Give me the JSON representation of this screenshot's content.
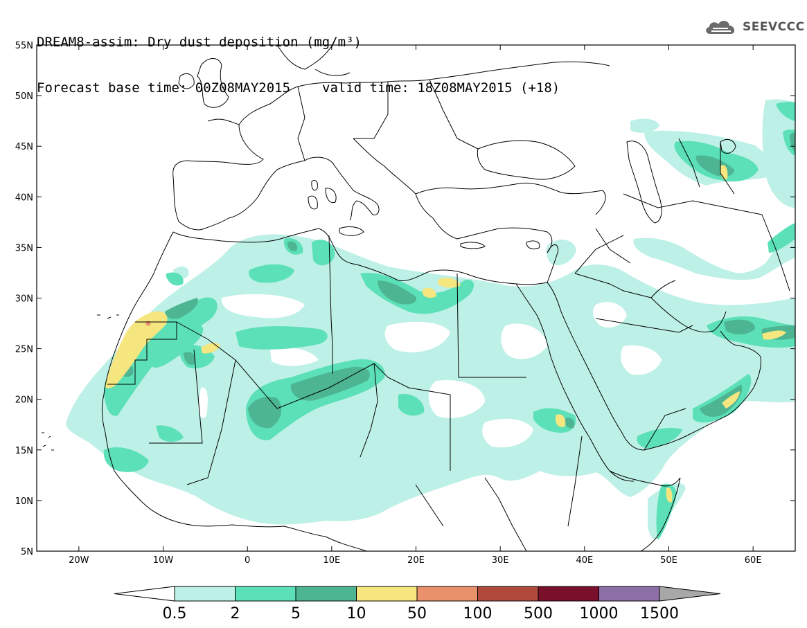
{
  "title": {
    "line1": "DREAM8-assim: Dry dust deposition (mg/m³)",
    "base_time": "Forecast base time: 00Z08MAY2015",
    "valid_time": "valid time: 18Z08MAY2015 (+18)"
  },
  "logo": {
    "text": "SEEVCCC",
    "icon": "cloud-icon"
  },
  "map": {
    "lon_range": [
      -25,
      65
    ],
    "lat_range": [
      5,
      55
    ],
    "lon_ticks": [
      "20W",
      "10W",
      "0",
      "10E",
      "20E",
      "30E",
      "40E",
      "50E",
      "60E"
    ],
    "lat_ticks": [
      "55N",
      "50N",
      "45N",
      "40N",
      "35N",
      "30N",
      "25N",
      "20N",
      "15N",
      "10N",
      "5N"
    ]
  },
  "legend": {
    "labels": [
      "0.5",
      "2",
      "5",
      "10",
      "50",
      "100",
      "500",
      "1000",
      "1500"
    ],
    "colors": [
      "#bdf0e6",
      "#5ce0b8",
      "#4db592",
      "#f5e680",
      "#e8916a",
      "#b04a3c",
      "#7a0f2c",
      "#8c6fa5",
      "#a8a8a8"
    ]
  }
}
